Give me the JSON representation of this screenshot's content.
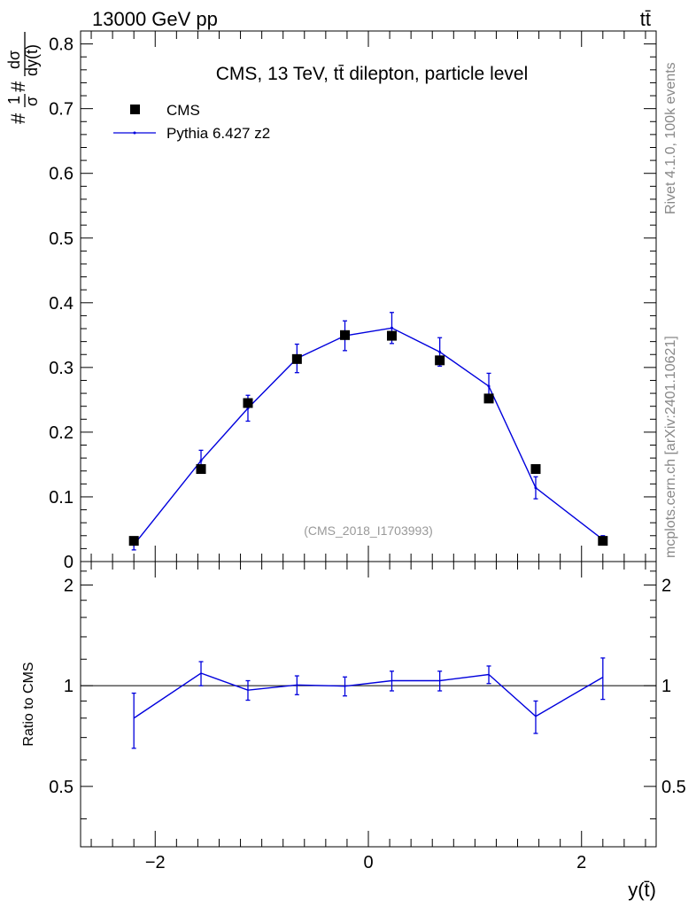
{
  "header": {
    "left": "13000 GeV pp",
    "right": "tt̄"
  },
  "side_labels": {
    "rivet": "Rivet 4.1.0,  100k events",
    "mcplots": "mcplots.cern.ch [arXiv:2401.10621]"
  },
  "chart_data": [
    {
      "type": "scatter",
      "panel": "main",
      "title": "CMS, 13 TeV, tt̄ dilepton, particle level",
      "ylabel_parts": {
        "hash1": "#",
        "num1": "1",
        "den1": "σ",
        "hash2": "#",
        "num2": "dσ",
        "den2": "dy(t̄)"
      },
      "watermark": "(CMS_2018_I1703993)",
      "xlim": [
        -2.7,
        2.7
      ],
      "ylim": [
        0,
        0.82
      ],
      "y_ticks": [
        0,
        0.1,
        0.2,
        0.3,
        0.4,
        0.5,
        0.6,
        0.7,
        0.8
      ],
      "y_tick_labels": [
        "0",
        "0.1",
        "0.2",
        "0.3",
        "0.4",
        "0.5",
        "0.6",
        "0.7",
        "0.8"
      ],
      "legend": [
        {
          "name": "CMS",
          "marker": "square",
          "color": "#000000"
        },
        {
          "name": "Pythia 6.427 z2",
          "marker": "line",
          "color": "#0000dd"
        }
      ],
      "series": [
        {
          "name": "CMS",
          "x": [
            -2.2,
            -1.57,
            -1.13,
            -0.67,
            -0.22,
            0.22,
            0.67,
            1.13,
            1.57,
            2.2
          ],
          "y": [
            0.032,
            0.143,
            0.245,
            0.313,
            0.35,
            0.349,
            0.311,
            0.252,
            0.143,
            0.032
          ]
        },
        {
          "name": "Pythia 6.427 z2",
          "x": [
            -2.2,
            -1.57,
            -1.13,
            -0.67,
            -0.22,
            0.22,
            0.67,
            1.13,
            1.57,
            2.2
          ],
          "y": [
            0.026,
            0.156,
            0.237,
            0.314,
            0.349,
            0.361,
            0.324,
            0.271,
            0.114,
            0.034
          ],
          "err": [
            0.008,
            0.016,
            0.02,
            0.022,
            0.023,
            0.024,
            0.022,
            0.02,
            0.017,
            0.006
          ]
        }
      ]
    },
    {
      "type": "line",
      "panel": "ratio",
      "ylabel": "Ratio to CMS",
      "xlabel": "y(t̄)",
      "xlim": [
        -2.7,
        2.7
      ],
      "ylim": [
        0.33,
        2.35
      ],
      "x_ticks": [
        -2,
        0,
        2
      ],
      "x_tick_labels": [
        "−2",
        "0",
        "2"
      ],
      "y_ticks": [
        0.5,
        1,
        2
      ],
      "y_tick_labels": [
        "0.5",
        "1",
        "2"
      ],
      "reference": 1,
      "series": [
        {
          "name": "Pythia 6.427 z2",
          "x": [
            -2.2,
            -1.57,
            -1.13,
            -0.67,
            -0.22,
            0.22,
            0.67,
            1.13,
            1.57,
            2.2
          ],
          "y": [
            0.8,
            1.09,
            0.97,
            1.005,
            0.997,
            1.035,
            1.035,
            1.08,
            0.81,
            1.06
          ],
          "err": [
            0.15,
            0.09,
            0.065,
            0.065,
            0.065,
            0.07,
            0.07,
            0.065,
            0.09,
            0.15
          ]
        }
      ]
    }
  ]
}
